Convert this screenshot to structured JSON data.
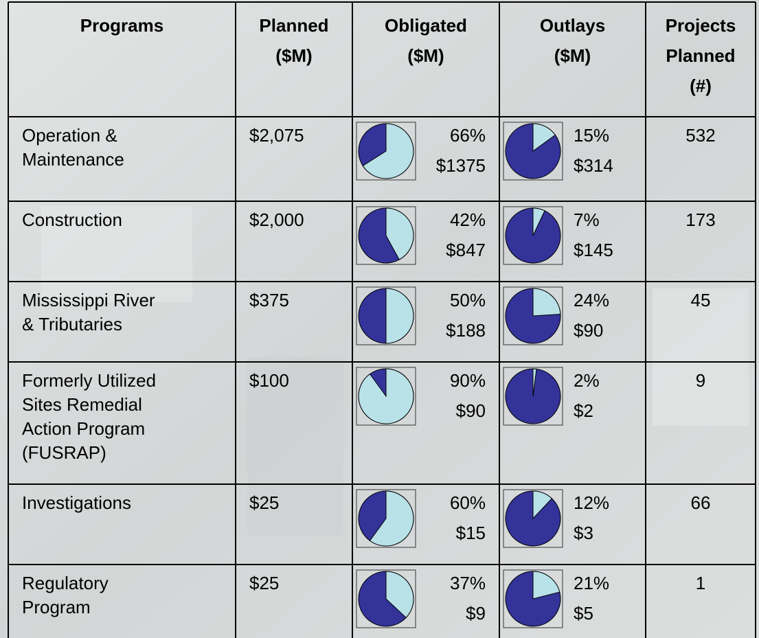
{
  "table": {
    "header": [
      [
        "Programs"
      ],
      [
        "Planned",
        "($M)"
      ],
      [
        "Obligated",
        "($M)"
      ],
      [
        "Outlays",
        "($M)"
      ],
      [
        "Projects",
        "Planned",
        "(#)"
      ]
    ],
    "rows": [
      {
        "program": [
          "Operation &",
          "Maintenance"
        ],
        "planned": "$2,075",
        "obligated": {
          "value": 66,
          "label": "66%",
          "amount": "$1375"
        },
        "outlays": {
          "value": 15,
          "label": "15%",
          "amount": "$314"
        },
        "projects": 532
      },
      {
        "program": [
          "Construction"
        ],
        "planned": "$2,000",
        "obligated": {
          "value": 42,
          "label": "42%",
          "amount": "$847"
        },
        "outlays": {
          "value": 7,
          "label": "7%",
          "amount": "$145"
        },
        "projects": 173
      },
      {
        "program": [
          "Mississippi River",
          "& Tributaries"
        ],
        "planned": "$375",
        "obligated": {
          "value": 50,
          "label": "50%",
          "amount": "$188"
        },
        "outlays": {
          "value": 24,
          "label": "24%",
          "amount": "$90"
        },
        "projects": 45
      },
      {
        "program": [
          "Formerly Utilized",
          "Sites Remedial",
          "Action Program",
          "(FUSRAP)"
        ],
        "planned": "$100",
        "obligated": {
          "value": 90,
          "label": "90%",
          "amount": "$90"
        },
        "outlays": {
          "value": 2,
          "label": "2%",
          "amount": "$2"
        },
        "projects": 9
      },
      {
        "program": [
          "Investigations"
        ],
        "planned": "$25",
        "obligated": {
          "value": 60,
          "label": "60%",
          "amount": "$15"
        },
        "outlays": {
          "value": 12,
          "label": "12%",
          "amount": "$3"
        },
        "projects": 66
      },
      {
        "program": [
          "Regulatory",
          "Program"
        ],
        "planned": "$25",
        "obligated": {
          "value": 37,
          "label": "37%",
          "amount": "$9"
        },
        "outlays": {
          "value": 21,
          "label": "21%",
          "amount": "$5"
        },
        "projects": 1
      }
    ]
  }
}
